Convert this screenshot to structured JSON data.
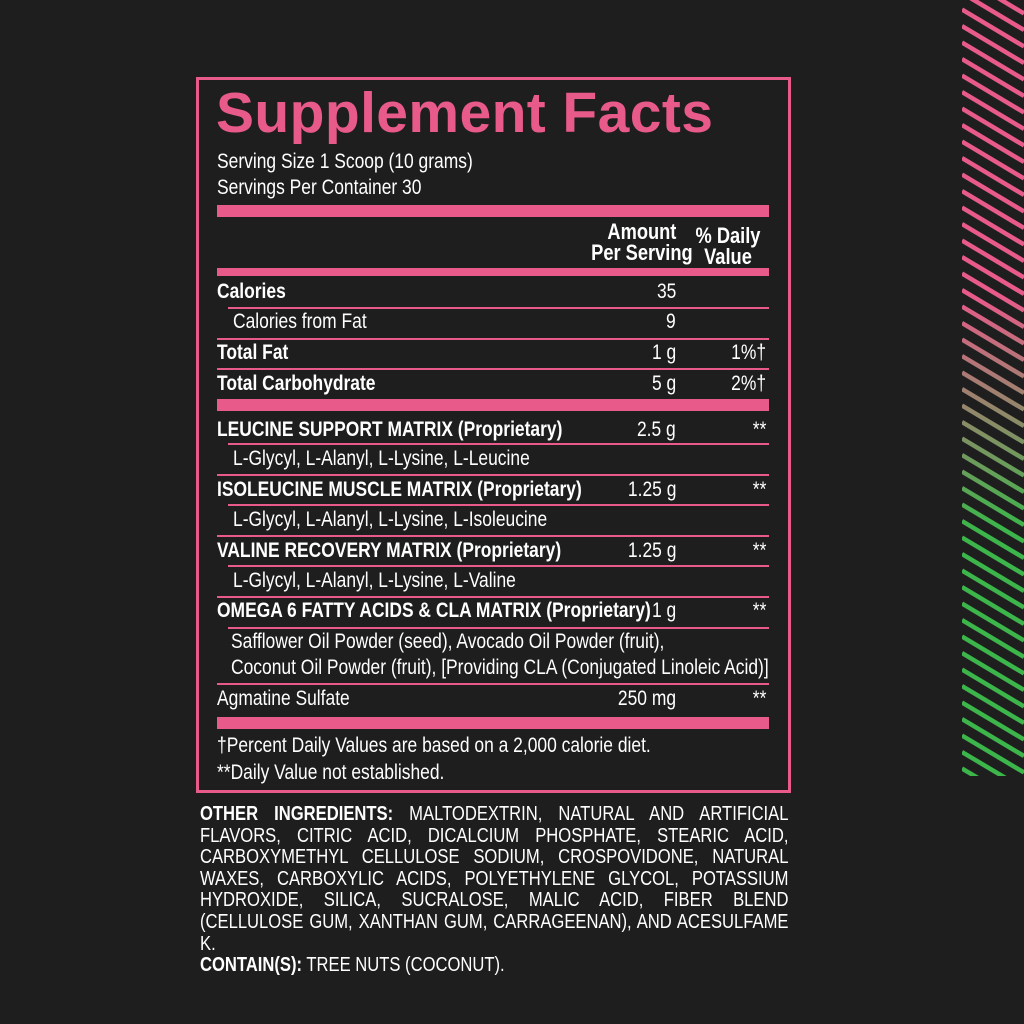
{
  "title": "Supplement Facts",
  "serving_size": "Serving Size 1 Scoop (10 grams)",
  "servings_per_container": "Servings Per Container 30",
  "headers": {
    "amount_line1": "Amount",
    "amount_line2": "Per Serving",
    "dv_line1": "% Daily",
    "dv_line2": "Value"
  },
  "rows": [
    {
      "label": "Calories",
      "amount": "35",
      "dv": ""
    },
    {
      "label": "Calories from Fat",
      "amount": "9",
      "dv": ""
    },
    {
      "label": "Total Fat",
      "amount": "1 g",
      "dv": "1%†"
    },
    {
      "label": "Total Carbohydrate",
      "amount": "5 g",
      "dv": "2%†"
    },
    {
      "label": "LEUCINE SUPPORT MATRIX (Proprietary)",
      "amount": "2.5 g",
      "dv": "**"
    },
    {
      "label": "L-Glycyl, L-Alanyl, L-Lysine, L-Leucine"
    },
    {
      "label": "ISOLEUCINE MUSCLE MATRIX (Proprietary)",
      "amount": "1.25 g",
      "dv": "**"
    },
    {
      "label": "L-Glycyl, L-Alanyl, L-Lysine, L-Isoleucine"
    },
    {
      "label": "VALINE RECOVERY MATRIX (Proprietary)",
      "amount": "1.25 g",
      "dv": "**"
    },
    {
      "label": "L-Glycyl, L-Alanyl, L-Lysine, L-Valine"
    },
    {
      "label": "OMEGA 6 FATTY ACIDS  & CLA MATRIX (Proprietary)",
      "amount": "1 g",
      "dv": "**"
    },
    {
      "label": "Safflower Oil Powder (seed), Avocado Oil Powder (fruit),"
    },
    {
      "label": "Coconut Oil Powder (fruit), [Providing CLA (Conjugated Linoleic Acid)]"
    },
    {
      "label": "Agmatine Sulfate",
      "amount": "250 mg",
      "dv": "**"
    }
  ],
  "footnotes": [
    "†Percent Daily Values are based on a 2,000 calorie diet.",
    "**Daily Value not established."
  ],
  "other_ingredients": {
    "label": "OTHER INGREDIENTS:",
    "text": "MALTODEXTRIN, NATURAL AND ARTIFICIAL FLAVORS, CITRIC ACID, DICALCIUM PHOSPHATE, STEARIC ACID, CARBOXYMETHYL CELLULOSE SODIUM, CROSPOVIDONE, NATURAL WAXES, CARBOXYLIC ACIDS, POLYETHYLENE GLYCOL, POTASSIUM HYDROXIDE, SILICA, SUCRALOSE, MALIC ACID, FIBER BLEND (CELLULOSE GUM, XANTHAN GUM, CARRAGEENAN), AND ACESULFAME K."
  },
  "contains": {
    "label": "CONTAIN(S):",
    "text": "TREE NUTS (COCONUT)."
  },
  "colors": {
    "accent": "#e85a8a",
    "stripe_top": "#e85a8a",
    "stripe_bottom": "#3cb54a",
    "background": "#1e1e1e"
  }
}
